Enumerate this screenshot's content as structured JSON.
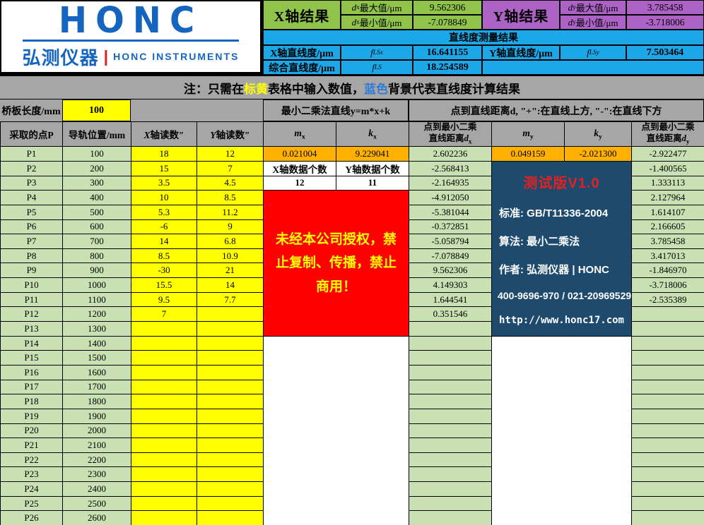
{
  "logo": {
    "wordmark": "HONC",
    "cn": "弘测仪器",
    "divider": "|",
    "en": "HONC INSTRUMENTS"
  },
  "x_results": {
    "title": "X轴结果",
    "max": {
      "sym": "d",
      "sub": "x",
      "label": "最大值/μm",
      "value": "9.562306"
    },
    "min": {
      "sym": "d",
      "sub": "x",
      "label": "最小值/μm",
      "value": "-7.078849"
    }
  },
  "y_results": {
    "title": "Y轴结果",
    "max": {
      "sym": "d",
      "sub": "y",
      "label": "最大值/μm",
      "value": "3.785458"
    },
    "min": {
      "sym": "d",
      "sub": "y",
      "label": "最小值/μm",
      "value": "-3.718006"
    }
  },
  "summary": {
    "title": "直线度测量结果",
    "x": {
      "label": "X轴直线度/μm",
      "sym": "f",
      "sub": "LSx",
      "value": "16.641155"
    },
    "y": {
      "label": "Y轴直线度/μm",
      "sym": "f",
      "sub": "LSy",
      "value": "7.503464"
    },
    "total": {
      "label": "综合直线度/μm",
      "sym": "f",
      "sub": "LS",
      "value": "18.254589"
    }
  },
  "note": {
    "prefix": "注：只需在",
    "yellow": "标黄",
    "mid": "表格中输入数值，",
    "blue": "蓝色",
    "suffix": "背景代表直线度计算结果"
  },
  "bridge": {
    "label": "桥板长度/mm",
    "value": "100",
    "lsq_header": "最小二乘法直线y=m*x+k",
    "dist_header": "点到直线距离d, \"+\":在直线上方, \"-\":在直线下方"
  },
  "table": {
    "headers": {
      "point": "采取的点P",
      "position": "导轨位置/mm",
      "x_reading": {
        "sym": "X",
        "rest": "轴读数″"
      },
      "y_reading": {
        "sym": "Y",
        "rest": "轴读数″"
      },
      "mx": {
        "sym": "m",
        "sub": "x"
      },
      "kx": {
        "sym": "k",
        "sub": "x"
      },
      "dx": {
        "line1": "点到最小二乘",
        "line2": "直线距离",
        "sym": "d",
        "sub": "x"
      },
      "my": {
        "sym": "m",
        "sub": "y"
      },
      "ky": {
        "sym": "k",
        "sub": "y"
      },
      "dy": {
        "line1": "点到最小二乘",
        "line2": "直线距离",
        "sym": "d",
        "sub": "y"
      }
    },
    "fit": {
      "mx": "0.021004",
      "kx": "9.229041",
      "my": "0.049159",
      "ky": "-2.021300"
    },
    "counts": {
      "x_label": "X轴数据个数",
      "y_label": "Y轴数据个数",
      "x_value": "12",
      "y_value": "11"
    },
    "rows": [
      {
        "p": "P1",
        "pos": "100",
        "x": "18",
        "y": "12",
        "dx": "2.602236",
        "dy": "-2.922477"
      },
      {
        "p": "P2",
        "pos": "200",
        "x": "15",
        "y": "7",
        "dx": "-2.568413",
        "dy": "-1.400565"
      },
      {
        "p": "P3",
        "pos": "300",
        "x": "3.5",
        "y": "4.5",
        "dx": "-2.164935",
        "dy": "1.333113"
      },
      {
        "p": "P4",
        "pos": "400",
        "x": "10",
        "y": "8.5",
        "dx": "-4.912050",
        "dy": "2.127964"
      },
      {
        "p": "P5",
        "pos": "500",
        "x": "5.3",
        "y": "11.2",
        "dx": "-5.381044",
        "dy": "1.614107"
      },
      {
        "p": "P6",
        "pos": "600",
        "x": "-6",
        "y": "9",
        "dx": "-0.372851",
        "dy": "2.166605"
      },
      {
        "p": "P7",
        "pos": "700",
        "x": "14",
        "y": "6.8",
        "dx": "-5.058794",
        "dy": "3.785458"
      },
      {
        "p": "P8",
        "pos": "800",
        "x": "8.5",
        "y": "10.9",
        "dx": "-7.078849",
        "dy": "3.417013"
      },
      {
        "p": "P9",
        "pos": "900",
        "x": "-30",
        "y": "21",
        "dx": "9.562306",
        "dy": "-1.846970"
      },
      {
        "p": "P10",
        "pos": "1000",
        "x": "15.5",
        "y": "14",
        "dx": "4.149303",
        "dy": "-3.718006"
      },
      {
        "p": "P11",
        "pos": "1100",
        "x": "9.5",
        "y": "7.7",
        "dx": "1.644541",
        "dy": "-2.535389"
      },
      {
        "p": "P12",
        "pos": "1200",
        "x": "7",
        "y": "",
        "dx": "0.351546",
        "dy": ""
      },
      {
        "p": "P13",
        "pos": "1300",
        "x": "",
        "y": "",
        "dx": "",
        "dy": ""
      },
      {
        "p": "P14",
        "pos": "1400",
        "x": "",
        "y": "",
        "dx": "",
        "dy": ""
      },
      {
        "p": "P15",
        "pos": "1500",
        "x": "",
        "y": "",
        "dx": "",
        "dy": ""
      },
      {
        "p": "P16",
        "pos": "1600",
        "x": "",
        "y": "",
        "dx": "",
        "dy": ""
      },
      {
        "p": "P17",
        "pos": "1700",
        "x": "",
        "y": "",
        "dx": "",
        "dy": ""
      },
      {
        "p": "P18",
        "pos": "1800",
        "x": "",
        "y": "",
        "dx": "",
        "dy": ""
      },
      {
        "p": "P19",
        "pos": "1900",
        "x": "",
        "y": "",
        "dx": "",
        "dy": ""
      },
      {
        "p": "P20",
        "pos": "2000",
        "x": "",
        "y": "",
        "dx": "",
        "dy": ""
      },
      {
        "p": "P21",
        "pos": "2100",
        "x": "",
        "y": "",
        "dx": "",
        "dy": ""
      },
      {
        "p": "P22",
        "pos": "2200",
        "x": "",
        "y": "",
        "dx": "",
        "dy": ""
      },
      {
        "p": "P23",
        "pos": "2300",
        "x": "",
        "y": "",
        "dx": "",
        "dy": ""
      },
      {
        "p": "P24",
        "pos": "2400",
        "x": "",
        "y": "",
        "dx": "",
        "dy": ""
      },
      {
        "p": "P25",
        "pos": "2500",
        "x": "",
        "y": "",
        "dx": "",
        "dy": ""
      },
      {
        "p": "P26",
        "pos": "2600",
        "x": "",
        "y": "",
        "dx": "",
        "dy": ""
      }
    ]
  },
  "warning": {
    "text": "未经本公司授权，禁止复制、传播，禁止商用！"
  },
  "version_box": {
    "version": "测试版V1.0",
    "standard": "标准: GB/T11336-2004",
    "algorithm": "算法: 最小二乘法",
    "author": "作者: 弘测仪器 | HONC",
    "phone": "400-9696-970 / 021-20969529",
    "url": "http://www.honc17.com"
  },
  "colors": {
    "logo_blue": "#1565C0",
    "x_result_green": "#8FC34A",
    "y_result_purple": "#AD63C6",
    "result_cyan": "#1CA7E8",
    "header_gray": "#A6A6A6",
    "input_yellow": "#FFFF00",
    "computed_green": "#C9E0B3",
    "fit_orange": "#FFB000",
    "warning_red": "#FF0000",
    "version_navy": "#1E4A6D"
  }
}
